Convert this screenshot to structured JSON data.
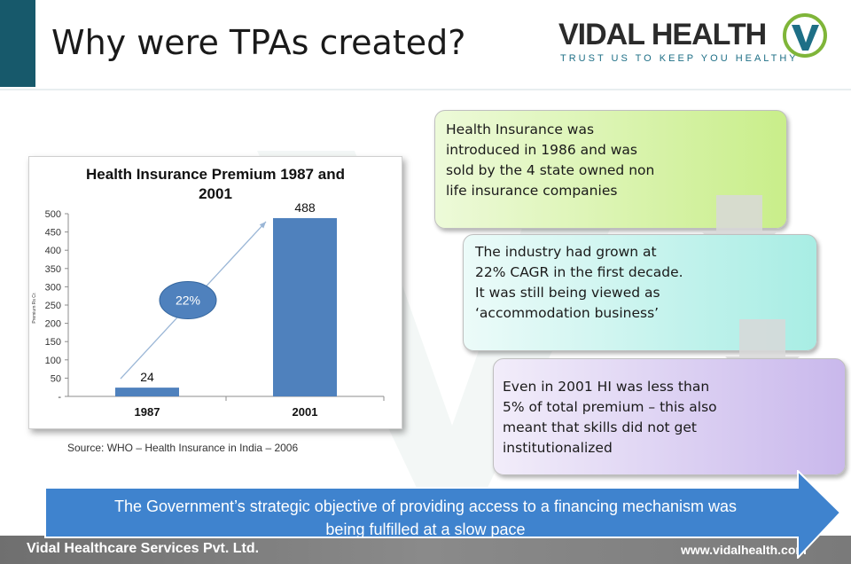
{
  "title": "Why were TPAs created?",
  "logo": {
    "name": "VIDAL HEALTH",
    "tagline": "TRUST US TO KEEP YOU HEALTHY"
  },
  "chart_data": {
    "type": "bar",
    "title": "Health Insurance Premium 1987 and 2001",
    "title_line1": "Health Insurance Premium 1987 and",
    "title_line2": "2001",
    "categories": [
      "1987",
      "2001"
    ],
    "values": [
      24,
      488
    ],
    "data_labels": [
      "24",
      "488"
    ],
    "ylabel": "Premium Rs Cr.",
    "yticks": [
      "500",
      "450",
      "400",
      "350",
      "300",
      "250",
      "200",
      "150",
      "100",
      "50",
      "-"
    ],
    "ylim": [
      0,
      500
    ],
    "grid": false,
    "bar_color": "#4f81bd",
    "annotation": "22%"
  },
  "source": "Source: WHO – Health Insurance in India – 2006",
  "cards": [
    {
      "text": "Health Insurance was introduced in 1986 and was sold by the 4 state owned non life insurance companies"
    },
    {
      "text": "The industry had grown at 22% CAGR in the first decade. It was still being viewed as ‘accommodation business’"
    },
    {
      "text": "Even in 2001 HI was less than 5% of total premium –  this also meant that skills did not get institutionalized"
    }
  ],
  "banner": {
    "line1": "The Government’s strategic objective of providing access to a financing mechanism was",
    "line2": "being fulfilled at a slow pace",
    "color": "#3f83ce"
  },
  "footer": {
    "company": "Vidal Healthcare Services Pvt. Ltd.",
    "website": "www.vidalhealth.com"
  },
  "colors": {
    "accent": "#17596b",
    "brand_green": "#7fb539",
    "brand_teal": "#1e6f86"
  }
}
